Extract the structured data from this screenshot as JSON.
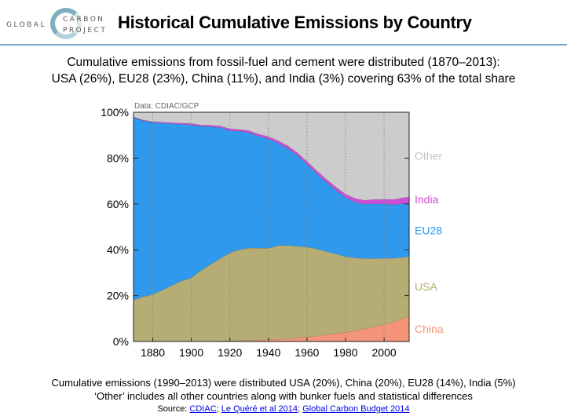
{
  "logo": {
    "word1": "GLOBAL",
    "word2": "CARBON",
    "word3": "PROJECT"
  },
  "title": "Historical Cumulative Emissions by Country",
  "subtitle_line1": "Cumulative emissions from fossil-fuel and cement were distributed (1870–2013):",
  "subtitle_line2": "USA (26%), EU28 (23%), China (11%), and India (3%) covering 63% of the total share",
  "footer_line1": "Cumulative emissions (1990–2013) were distributed USA (20%), China (20%), EU28 (14%), India (5%)",
  "footer_line2": "‘Other’ includes all other countries along with bunker fuels and statistical differences",
  "source": {
    "prefix": "Source: ",
    "link1": "CDIAC",
    "sep1": "; ",
    "link2": "Le Quéré et al 2014",
    "sep2": "; ",
    "link3": "Global Carbon Budget 2014"
  },
  "colors": {
    "china": "#f4957a",
    "usa": "#b5ad74",
    "eu28": "#2f99ee",
    "india": "#cd4fd6",
    "other": "#cccccc"
  },
  "chart_data": {
    "type": "area",
    "stacked": true,
    "annotation": "Data: CDIAC/GCP",
    "xlim": [
      1870,
      2013
    ],
    "ylim": [
      0,
      100
    ],
    "x_ticks": [
      1880,
      1900,
      1920,
      1940,
      1960,
      1980,
      2000
    ],
    "y_ticks": [
      0,
      20,
      40,
      60,
      80,
      100
    ],
    "y_tick_labels": [
      "0%",
      "20%",
      "40%",
      "60%",
      "80%",
      "100%"
    ],
    "grid": "vertical dotted",
    "legend": "right-side inline labels",
    "x": [
      1870,
      1875,
      1880,
      1885,
      1890,
      1895,
      1900,
      1905,
      1910,
      1915,
      1920,
      1925,
      1930,
      1935,
      1940,
      1945,
      1950,
      1955,
      1960,
      1965,
      1970,
      1975,
      1980,
      1985,
      1990,
      1995,
      2000,
      2005,
      2010,
      2013
    ],
    "series": [
      {
        "name": "China",
        "color": "#f4957a",
        "values": [
          0,
          0,
          0,
          0,
          0,
          0,
          0,
          0,
          0.1,
          0.2,
          0.3,
          0.4,
          0.5,
          0.6,
          0.8,
          1.0,
          1.2,
          1.5,
          2.0,
          2.4,
          2.9,
          3.4,
          4.0,
          4.8,
          5.6,
          6.5,
          7.5,
          8.5,
          10.2,
          11.0
        ]
      },
      {
        "name": "USA",
        "color": "#b5ad74",
        "values": [
          18,
          19.6,
          20.5,
          22.5,
          24.5,
          26.5,
          27.8,
          31.0,
          33.6,
          36.0,
          38.4,
          39.7,
          40.3,
          40.2,
          39.9,
          40.9,
          40.8,
          40.0,
          39.3,
          38.0,
          36.3,
          34.8,
          33.1,
          31.7,
          30.6,
          29.7,
          28.8,
          27.8,
          26.6,
          26.0
        ]
      },
      {
        "name": "EU28",
        "color": "#2f99ee",
        "values": [
          79.7,
          76.7,
          75.1,
          72.8,
          70.5,
          68.3,
          66.7,
          62.9,
          60.0,
          57.1,
          53.3,
          51.6,
          50.3,
          48.8,
          47.7,
          44.6,
          42.2,
          39.7,
          36.0,
          32.9,
          30.3,
          27.8,
          25.7,
          24.3,
          23.7,
          23.9,
          23.7,
          23.4,
          23.4,
          23.0
        ]
      },
      {
        "name": "India",
        "color": "#cd4fd6",
        "values": [
          0.3,
          0.3,
          0.4,
          0.4,
          0.5,
          0.5,
          0.6,
          0.6,
          0.7,
          0.7,
          0.8,
          0.8,
          0.9,
          0.9,
          1.0,
          1.1,
          1.2,
          1.2,
          1.3,
          1.3,
          1.3,
          1.4,
          1.5,
          1.6,
          1.7,
          1.9,
          2.1,
          2.3,
          2.6,
          3.0
        ]
      },
      {
        "name": "Other",
        "color": "#cccccc",
        "values": [
          2.0,
          3.4,
          4.0,
          4.3,
          4.5,
          4.7,
          4.9,
          5.5,
          5.6,
          6.0,
          7.2,
          7.5,
          8.0,
          9.5,
          10.6,
          12.4,
          14.6,
          17.6,
          21.4,
          25.4,
          29.2,
          32.6,
          35.7,
          37.6,
          38.4,
          38.0,
          37.9,
          38.0,
          37.2,
          37.0
        ]
      }
    ]
  }
}
